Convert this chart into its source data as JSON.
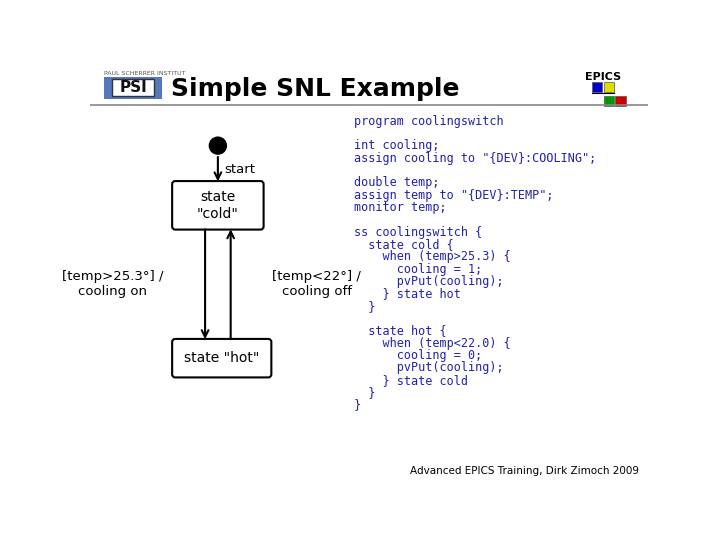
{
  "title": "Simple SNL Example",
  "bg_color": "#ffffff",
  "title_color": "#000000",
  "title_fontsize": 18,
  "code_color": "#2222aa",
  "code_fontsize": 8.5,
  "code_lines": [
    "program coolingswitch",
    "",
    "int cooling;",
    "assign cooling to \"{DEV}:COOLING\";",
    "",
    "double temp;",
    "assign temp to \"{DEV}:TEMP\";",
    "monitor temp;",
    "",
    "ss coolingswitch {",
    "  state cold {",
    "    when (temp>25.3) {",
    "      cooling = 1;",
    "      pvPut(cooling);",
    "    } state hot",
    "  }",
    "",
    "  state hot {",
    "    when (temp<22.0) {",
    "      cooling = 0;",
    "      pvPut(cooling);",
    "    } state cold",
    "  }",
    "}"
  ],
  "footer_text": "Advanced EPICS Training, Dirk Zimoch 2009",
  "footer_color": "#000000",
  "footer_fontsize": 7.5,
  "state_cold_label": "state\n\"cold\"",
  "state_hot_label": "state \"hot\"",
  "start_label": "start",
  "left_arrow_label": "[temp>25.3°] /\ncooling on",
  "right_arrow_label": "[temp<22°] /\ncooling off",
  "diagram_box_color": "#ffffff",
  "diagram_box_edgecolor": "#000000",
  "diagram_text_color": "#000000",
  "epics_sq_colors": [
    "#0000cc",
    "#dddd00",
    "#009900",
    "#cc0000"
  ],
  "header_line_color": "#888888",
  "psi_blue": "#5577bb"
}
